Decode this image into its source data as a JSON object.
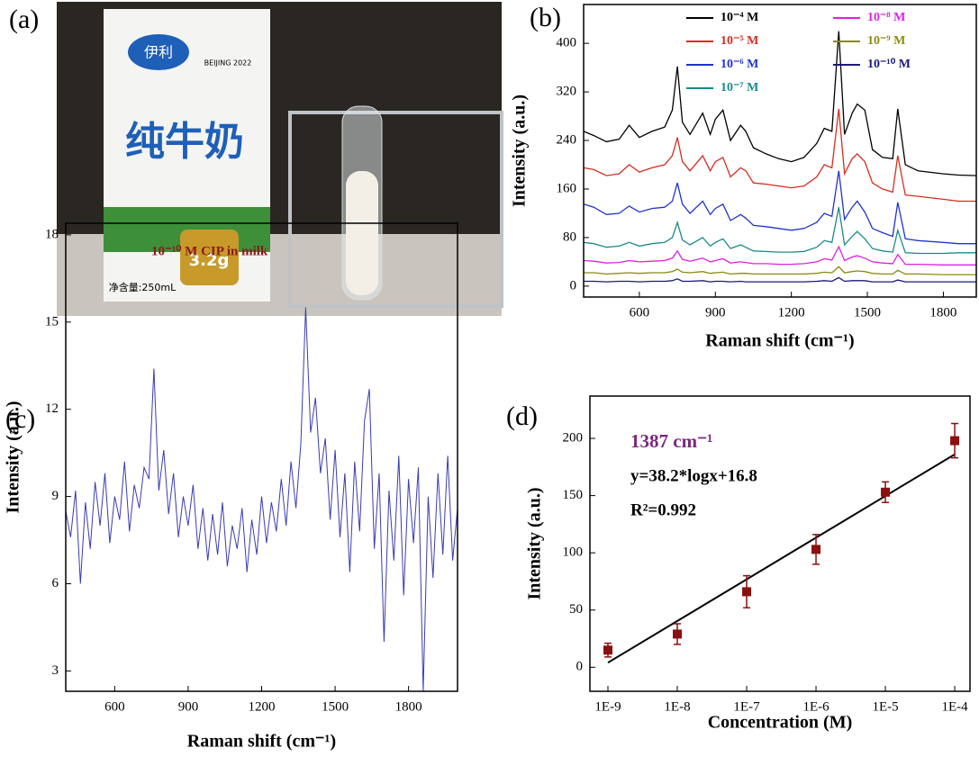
{
  "photo": {
    "panel_label": "(a)",
    "texts": [
      "伊利",
      "BEIJING 2022",
      "纯牛奶",
      "3.2g",
      "净含量:250mL"
    ]
  },
  "chart_data": [
    {
      "type": "line",
      "panel_label": "(b)",
      "xlabel": "Raman shift (cm⁻¹)",
      "ylabel": "Intensity (a.u.)",
      "xlim": [
        380,
        1930
      ],
      "xticks": [
        600,
        900,
        1200,
        1500,
        1800
      ],
      "ylim": [
        -18,
        464
      ],
      "yticks": [
        0,
        80,
        160,
        240,
        320,
        400
      ],
      "x": [
        380,
        420,
        470,
        520,
        560,
        600,
        650,
        700,
        730,
        750,
        770,
        800,
        850,
        880,
        900,
        930,
        960,
        1000,
        1020,
        1050,
        1100,
        1150,
        1200,
        1250,
        1300,
        1330,
        1360,
        1387,
        1410,
        1440,
        1460,
        1490,
        1520,
        1560,
        1600,
        1620,
        1650,
        1700,
        1800,
        1860,
        1930
      ],
      "series": [
        {
          "name": "10⁻⁴ M",
          "color": "#000000",
          "values": [
            255,
            248,
            238,
            242,
            265,
            245,
            255,
            262,
            290,
            362,
            270,
            250,
            285,
            250,
            275,
            290,
            240,
            265,
            255,
            228,
            218,
            210,
            205,
            212,
            235,
            260,
            255,
            420,
            250,
            285,
            300,
            290,
            225,
            212,
            210,
            292,
            200,
            190,
            185,
            183,
            182
          ]
        },
        {
          "name": "10⁻⁵ M",
          "color": "#d62d20",
          "values": [
            195,
            192,
            182,
            185,
            200,
            188,
            195,
            200,
            215,
            245,
            205,
            190,
            215,
            190,
            205,
            212,
            180,
            195,
            190,
            170,
            168,
            165,
            162,
            165,
            180,
            200,
            195,
            292,
            185,
            210,
            218,
            205,
            170,
            160,
            155,
            215,
            150,
            148,
            143,
            140,
            140
          ]
        },
        {
          "name": "10⁻⁶ M",
          "color": "#2233cc",
          "values": [
            135,
            130,
            118,
            120,
            132,
            122,
            128,
            130,
            140,
            170,
            135,
            120,
            140,
            118,
            128,
            135,
            108,
            118,
            112,
            100,
            98,
            95,
            92,
            95,
            105,
            120,
            115,
            190,
            110,
            130,
            140,
            122,
            95,
            88,
            82,
            138,
            78,
            75,
            72,
            70,
            70
          ]
        },
        {
          "name": "10⁻⁷ M",
          "color": "#1b8a8a",
          "values": [
            72,
            70,
            64,
            66,
            72,
            66,
            70,
            72,
            80,
            105,
            76,
            68,
            80,
            66,
            72,
            78,
            62,
            68,
            64,
            58,
            57,
            56,
            56,
            57,
            64,
            75,
            72,
            130,
            68,
            82,
            90,
            78,
            62,
            58,
            56,
            92,
            55,
            54,
            54,
            55,
            55
          ]
        },
        {
          "name": "10⁻⁸ M",
          "color": "#e020e0",
          "values": [
            42,
            41,
            38,
            39,
            42,
            40,
            41,
            42,
            46,
            58,
            44,
            41,
            46,
            40,
            42,
            45,
            38,
            40,
            39,
            37,
            37,
            36,
            36,
            37,
            40,
            45,
            43,
            65,
            42,
            48,
            50,
            46,
            40,
            38,
            37,
            52,
            36,
            36,
            35,
            35,
            35
          ]
        },
        {
          "name": "10⁻⁹ M",
          "color": "#8a8a10",
          "values": [
            22,
            22,
            20,
            21,
            22,
            21,
            22,
            22,
            24,
            28,
            23,
            22,
            24,
            21,
            22,
            23,
            20,
            21,
            21,
            20,
            20,
            20,
            20,
            20,
            21,
            23,
            22,
            32,
            22,
            24,
            25,
            24,
            21,
            20,
            20,
            26,
            20,
            20,
            19,
            19,
            19
          ]
        },
        {
          "name": "10⁻¹⁰ M",
          "color": "#1a1a7a",
          "values": [
            8,
            8,
            7,
            8,
            8,
            7,
            8,
            8,
            9,
            12,
            8,
            8,
            9,
            7,
            8,
            8,
            7,
            8,
            7,
            7,
            7,
            7,
            7,
            7,
            8,
            9,
            8,
            14,
            8,
            9,
            9,
            9,
            7,
            7,
            7,
            10,
            7,
            7,
            7,
            7,
            7
          ]
        }
      ]
    },
    {
      "type": "line",
      "panel_label": "(c)",
      "xlabel": "Raman shift (cm⁻¹)",
      "ylabel": "Intensity (a.u.)",
      "annotation": "10⁻¹⁰ M CIP in milk",
      "annotation_color": "#8b1a1a",
      "xlim": [
        400,
        2000
      ],
      "xticks": [
        600,
        900,
        1200,
        1500,
        1800
      ],
      "ylim": [
        2.3,
        18.4
      ],
      "yticks": [
        3,
        6,
        9,
        12,
        15,
        18
      ],
      "x": [
        400,
        420,
        440,
        460,
        480,
        500,
        520,
        540,
        560,
        580,
        600,
        620,
        640,
        660,
        680,
        700,
        720,
        740,
        760,
        780,
        800,
        820,
        840,
        860,
        880,
        900,
        920,
        940,
        960,
        980,
        1000,
        1020,
        1040,
        1060,
        1080,
        1100,
        1120,
        1140,
        1160,
        1180,
        1200,
        1220,
        1240,
        1260,
        1280,
        1300,
        1320,
        1340,
        1360,
        1380,
        1400,
        1420,
        1440,
        1460,
        1480,
        1500,
        1520,
        1540,
        1560,
        1580,
        1600,
        1620,
        1640,
        1660,
        1680,
        1700,
        1720,
        1740,
        1760,
        1780,
        1800,
        1820,
        1840,
        1860,
        1880,
        1900,
        1920,
        1940,
        1960,
        1980,
        2000
      ],
      "color": "#3b3bb0",
      "values": [
        8.5,
        7.6,
        9.2,
        6.0,
        8.8,
        7.2,
        9.5,
        8.0,
        9.8,
        7.4,
        9.0,
        8.2,
        10.2,
        7.8,
        9.4,
        8.6,
        10.0,
        9.6,
        13.4,
        9.2,
        10.6,
        8.4,
        9.8,
        7.6,
        9.0,
        8.0,
        9.4,
        7.2,
        8.6,
        6.8,
        8.4,
        7.0,
        8.8,
        6.6,
        8.0,
        7.2,
        8.6,
        6.4,
        8.2,
        7.0,
        9.0,
        7.4,
        8.8,
        7.8,
        9.6,
        8.0,
        10.2,
        8.6,
        10.8,
        15.5,
        11.2,
        12.4,
        9.8,
        11.0,
        8.2,
        10.6,
        7.6,
        9.8,
        6.4,
        10.2,
        7.8,
        11.6,
        12.7,
        7.2,
        9.8,
        4.0,
        9.2,
        6.8,
        10.4,
        5.6,
        9.6,
        7.4,
        10.0,
        2.3,
        9.0,
        6.2,
        9.8,
        7.0,
        10.4,
        6.8,
        8.6
      ]
    },
    {
      "type": "scatter",
      "panel_label": "(d)",
      "xlabel": "Concentration (M)",
      "ylabel": "Intensity (a.u.)",
      "log_x": true,
      "xlim": [
        5.5e-10,
        0.000166
      ],
      "xticks": [
        {
          "value": 1e-09,
          "label": "1E-9"
        },
        {
          "value": 1e-08,
          "label": "1E-8"
        },
        {
          "value": 1e-07,
          "label": "1E-7"
        },
        {
          "value": 1e-06,
          "label": "1E-6"
        },
        {
          "value": 1e-05,
          "label": "1E-5"
        },
        {
          "value": 0.0001,
          "label": "1E-4"
        }
      ],
      "ylim": [
        -21,
        237
      ],
      "yticks": [
        0,
        50,
        100,
        150,
        200
      ],
      "x": [
        1e-09,
        1e-08,
        1e-07,
        1e-06,
        1e-05,
        0.0001
      ],
      "values": [
        15,
        29,
        66,
        103,
        153,
        198
      ],
      "errors": [
        6,
        9,
        14,
        13,
        9,
        15
      ],
      "color": "#8b1010",
      "fit": {
        "x": [
          1e-09,
          0.0001
        ],
        "values": [
          4,
          186
        ],
        "color": "#000000"
      },
      "annotations": [
        {
          "text": "1387 cm⁻¹",
          "color": "#7b2a7b"
        },
        {
          "text": "y=38.2*logx+16.8",
          "color": "#000000"
        },
        {
          "text": "R²=0.992",
          "color": "#000000"
        }
      ]
    }
  ]
}
